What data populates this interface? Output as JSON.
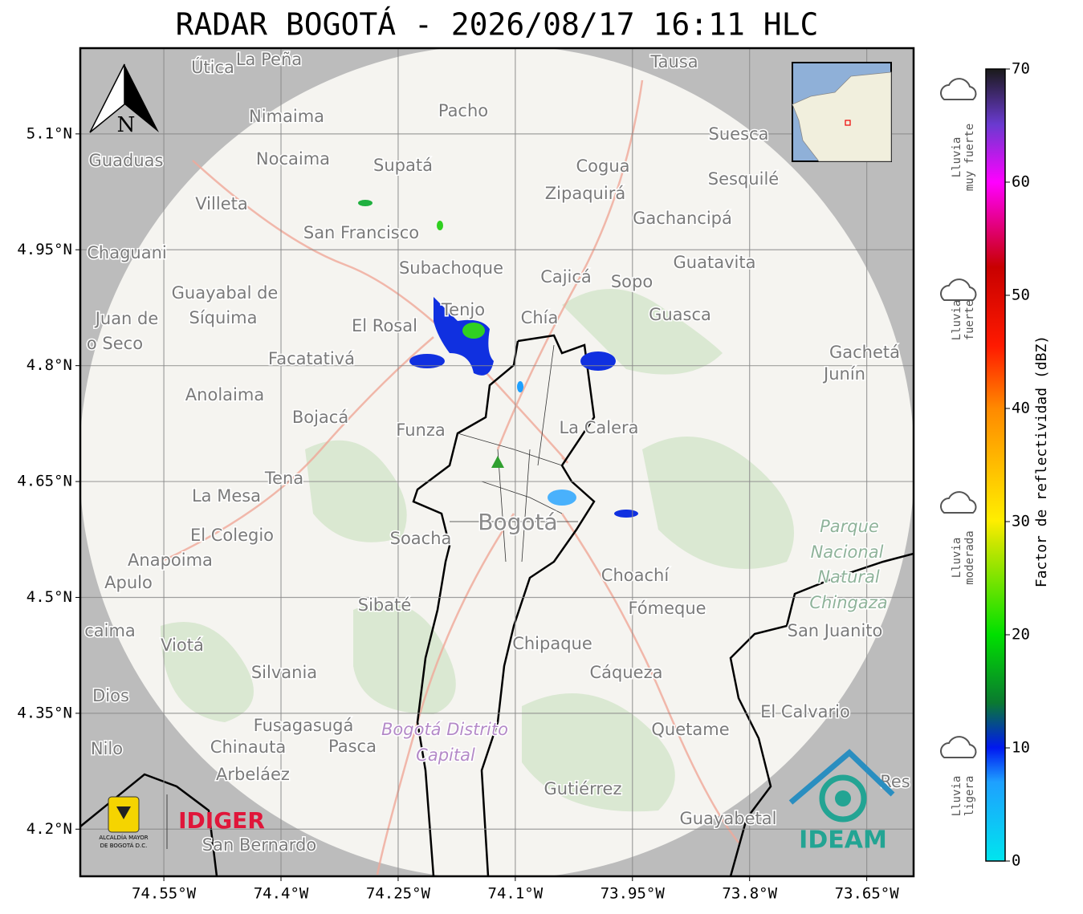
{
  "title": "RADAR BOGOTÁ - 2026/08/17 16:11 HLC",
  "map": {
    "lonlim": [
      -74.657,
      -73.59
    ],
    "latlim": [
      4.139,
      5.211
    ],
    "lon_ticks": [
      {
        "value": -74.55,
        "label": "74.55°W"
      },
      {
        "value": -74.4,
        "label": "74.4°W"
      },
      {
        "value": -74.25,
        "label": "74.25°W"
      },
      {
        "value": -74.1,
        "label": "74.1°W"
      },
      {
        "value": -73.95,
        "label": "73.95°W"
      },
      {
        "value": -73.8,
        "label": "73.8°W"
      },
      {
        "value": -73.65,
        "label": "73.65°W"
      }
    ],
    "lat_ticks": [
      {
        "value": 5.1,
        "label": "5.1°N"
      },
      {
        "value": 4.95,
        "label": "4.95°N"
      },
      {
        "value": 4.8,
        "label": "4.8°N"
      },
      {
        "value": 4.65,
        "label": "4.65°N"
      },
      {
        "value": 4.5,
        "label": "4.5°N"
      },
      {
        "value": 4.35,
        "label": "4.35°N"
      },
      {
        "value": 4.2,
        "label": "4.2°N"
      }
    ],
    "north": "N",
    "places": [
      "Útica",
      "La Peña",
      "Tausa",
      "Pacho",
      "Nimaima",
      "Suesca",
      "Guaduas",
      "Nocaima",
      "Supatá",
      "Cogua",
      "Sesquilé",
      "Zipaquirá",
      "Villeta",
      "Gachancipá",
      "San Francisco",
      "Chaguani",
      "Guatavita",
      "Subachoque",
      "Cajicá",
      "Sopo",
      "Guayabal de",
      "Síquima",
      "Tenjo",
      "Chía",
      "Guasca",
      "Juan de",
      "El Rosal",
      "o Seco",
      "Gachetá",
      "Facatativá",
      "Junín",
      "Anolaima",
      "Bojacá",
      "La Calera",
      "Funza",
      "Tena",
      "La Mesa",
      "Parque",
      "Bogotá",
      "El Colegio",
      "Soacha",
      "Nacional",
      "Anapoima",
      "Apulo",
      "Natural",
      "Choachí",
      "Chingaza",
      "Sibaté",
      "Fómeque",
      "caima",
      "San Juanito",
      "Viotá",
      "Chipaque",
      "Silvania",
      "Cáqueza",
      "Dios",
      "El Calvario",
      "Fusagasugá",
      "Quetame",
      "Bogotá Distrito",
      "Nilo",
      "Chinauta",
      "Pasca",
      "Capital",
      "Arbeláez",
      "Gutiérrez",
      "Res",
      "Guayabetal",
      "San Bernardo"
    ]
  },
  "colorbar": {
    "label": "Factor de reflectividad (dBZ)",
    "lim": [
      0,
      70
    ],
    "ticks": [
      0,
      10,
      20,
      30,
      40,
      50,
      60,
      70
    ],
    "categories": [
      [
        "Lluvia",
        "muy fuerte"
      ],
      [
        "Lluvia",
        "fuerte"
      ],
      [
        "Lluvia",
        "moderada"
      ],
      [
        "Lluvia",
        "ligera"
      ]
    ]
  },
  "logos": {
    "alcaldia": [
      "ALCALDÍA MAYOR",
      "DE BOGOTÁ D.C."
    ],
    "idiger": "IDIGER",
    "ideam": "IDEAM"
  }
}
